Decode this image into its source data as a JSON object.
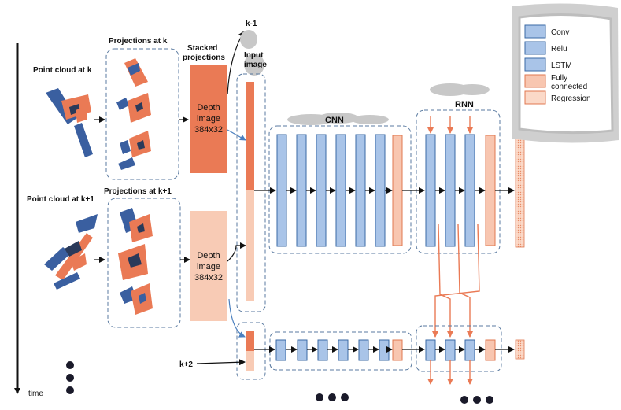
{
  "time_axis": {
    "label": "time"
  },
  "point_clouds": [
    {
      "label": "Point cloud at k"
    },
    {
      "label": "Point cloud at k+1"
    }
  ],
  "projections": [
    {
      "label": "Projections at k"
    },
    {
      "label": "Projections at k+1"
    }
  ],
  "stacked": {
    "label_line1": "Stacked",
    "label_line2": "projections"
  },
  "depth_images": [
    {
      "line1": "Depth",
      "line2": "image",
      "line3": "384x32"
    },
    {
      "line1": "Depth",
      "line2": "image",
      "line3": "384x32"
    }
  ],
  "input_image": {
    "label_line1": "Input",
    "label_line2": "image"
  },
  "frame_labels": {
    "prev": "k-1",
    "next": "k+2"
  },
  "blocks": {
    "cnn": "CNN",
    "rnn": "RNN"
  },
  "legend": [
    {
      "label": "Conv",
      "color": "#a9c4e8",
      "border": "#3a6aa6"
    },
    {
      "label": "Relu",
      "color": "#a9c4e8",
      "border": "#3a6aa6"
    },
    {
      "label": "LSTM",
      "color": "#a9c4e8",
      "border": "#3a6aa6"
    },
    {
      "label": "Fully",
      "label2": "connected",
      "color": "#f8c6b0",
      "border": "#e07850"
    },
    {
      "label": "Regression",
      "color": "#fbd9c8",
      "border": "#e07850"
    }
  ],
  "colors": {
    "conv": "#a9c4e8",
    "conv_border": "#3a6aa6",
    "fc": "#f8c6b0",
    "fc_border": "#e07850",
    "depth_dark": "#ea7a55",
    "depth_light": "#f8cbb5",
    "orange_arrow": "#ea7a55",
    "blue_arrow": "#4a7fbf",
    "dash": "#5a7aa0",
    "cloud": "#c8c8c8"
  }
}
